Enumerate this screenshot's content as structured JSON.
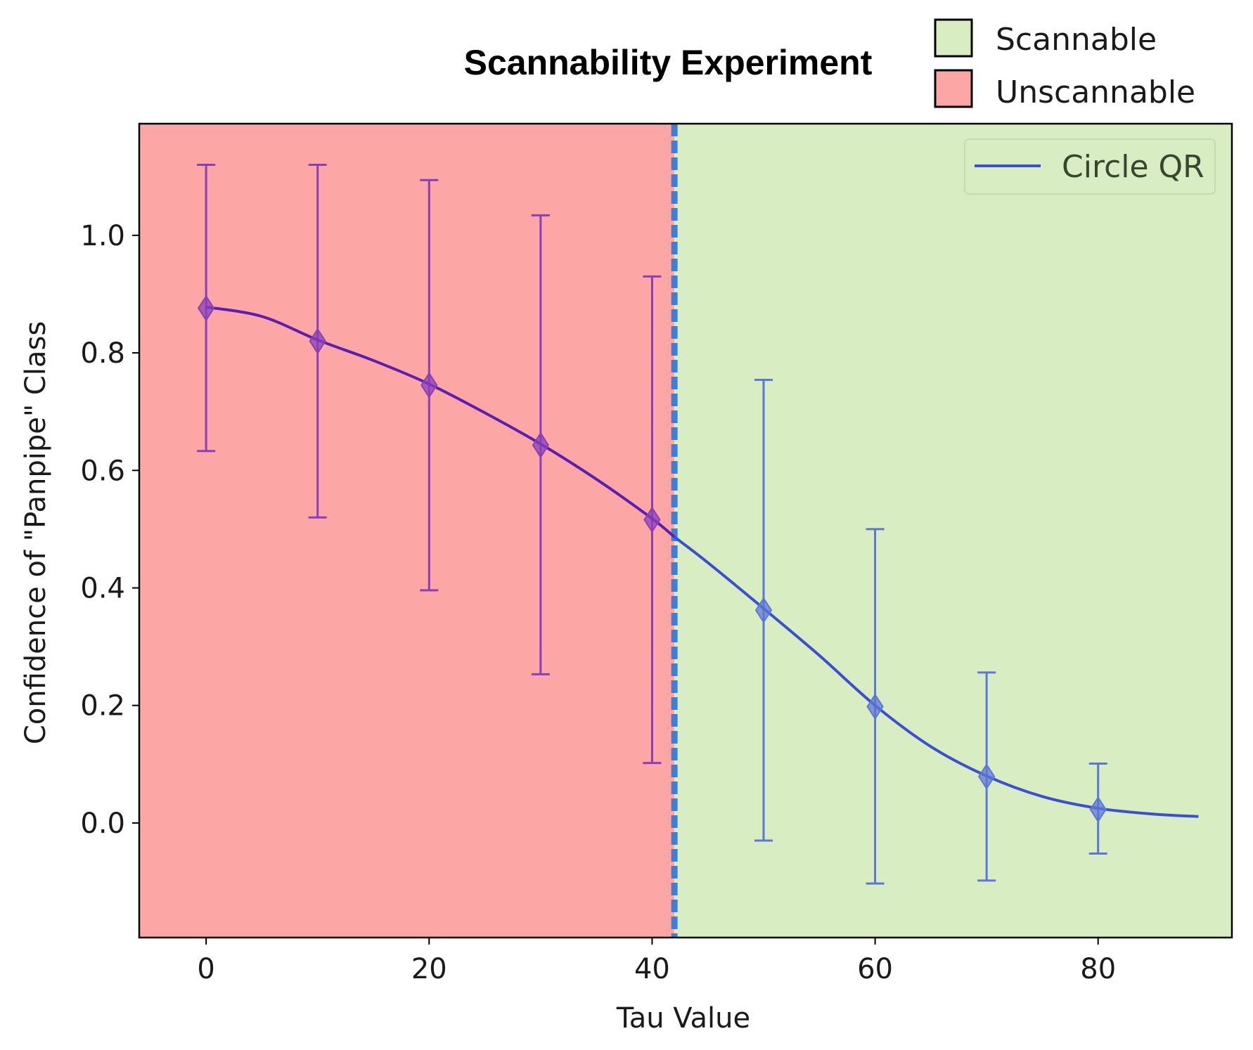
{
  "chart_data": {
    "type": "line",
    "title": "Scannability Experiment",
    "xlabel": "Tau Value",
    "ylabel": "Confidence of \"Panpipe\" Class",
    "xlim": [
      -6,
      92
    ],
    "ylim": [
      -0.195,
      1.19
    ],
    "xticks": [
      0,
      20,
      40,
      60,
      80
    ],
    "yticks": [
      0.0,
      0.2,
      0.4,
      0.6,
      0.8,
      1.0
    ],
    "xtick_labels": [
      "0",
      "20",
      "40",
      "60",
      "80"
    ],
    "ytick_labels": [
      "0.0",
      "0.2",
      "0.4",
      "0.6",
      "0.8",
      "1.0"
    ],
    "threshold_x": 42,
    "regions": [
      {
        "name": "Unscannable",
        "from": -6,
        "to": 42,
        "color": "#fca6a6"
      },
      {
        "name": "Scannable",
        "from": 42,
        "to": 92,
        "color": "#d8eec2"
      }
    ],
    "region_legend": [
      {
        "label": "Scannable",
        "color": "#d8eec2"
      },
      {
        "label": "Unscannable",
        "color": "#fca6a6"
      }
    ],
    "series": [
      {
        "name": "Circle QR",
        "color": "#3a4fd1",
        "points": [
          {
            "x": 0,
            "y": 0.876,
            "lo": 0.633,
            "hi": 1.12
          },
          {
            "x": 10,
            "y": 0.82,
            "lo": 0.52,
            "hi": 1.12
          },
          {
            "x": 20,
            "y": 0.745,
            "lo": 0.396,
            "hi": 1.094
          },
          {
            "x": 30,
            "y": 0.643,
            "lo": 0.253,
            "hi": 1.034
          },
          {
            "x": 40,
            "y": 0.516,
            "lo": 0.102,
            "hi": 0.93
          },
          {
            "x": 50,
            "y": 0.362,
            "lo": -0.03,
            "hi": 0.754
          },
          {
            "x": 60,
            "y": 0.198,
            "lo": -0.103,
            "hi": 0.5
          },
          {
            "x": 70,
            "y": 0.079,
            "lo": -0.098,
            "hi": 0.256
          },
          {
            "x": 80,
            "y": 0.023,
            "lo": -0.052,
            "hi": 0.101
          }
        ],
        "curve": [
          [
            0,
            0.878
          ],
          [
            5,
            0.862
          ],
          [
            10,
            0.822
          ],
          [
            15,
            0.787
          ],
          [
            20,
            0.747
          ],
          [
            25,
            0.698
          ],
          [
            30,
            0.645
          ],
          [
            35,
            0.585
          ],
          [
            40,
            0.518
          ],
          [
            42,
            0.487
          ],
          [
            45,
            0.443
          ],
          [
            50,
            0.365
          ],
          [
            55,
            0.285
          ],
          [
            60,
            0.2
          ],
          [
            65,
            0.13
          ],
          [
            70,
            0.08
          ],
          [
            75,
            0.045
          ],
          [
            80,
            0.025
          ],
          [
            85,
            0.015
          ],
          [
            89,
            0.011
          ]
        ]
      }
    ],
    "legend": {
      "entries": [
        "Circle QR"
      ],
      "position": "top-right"
    }
  }
}
